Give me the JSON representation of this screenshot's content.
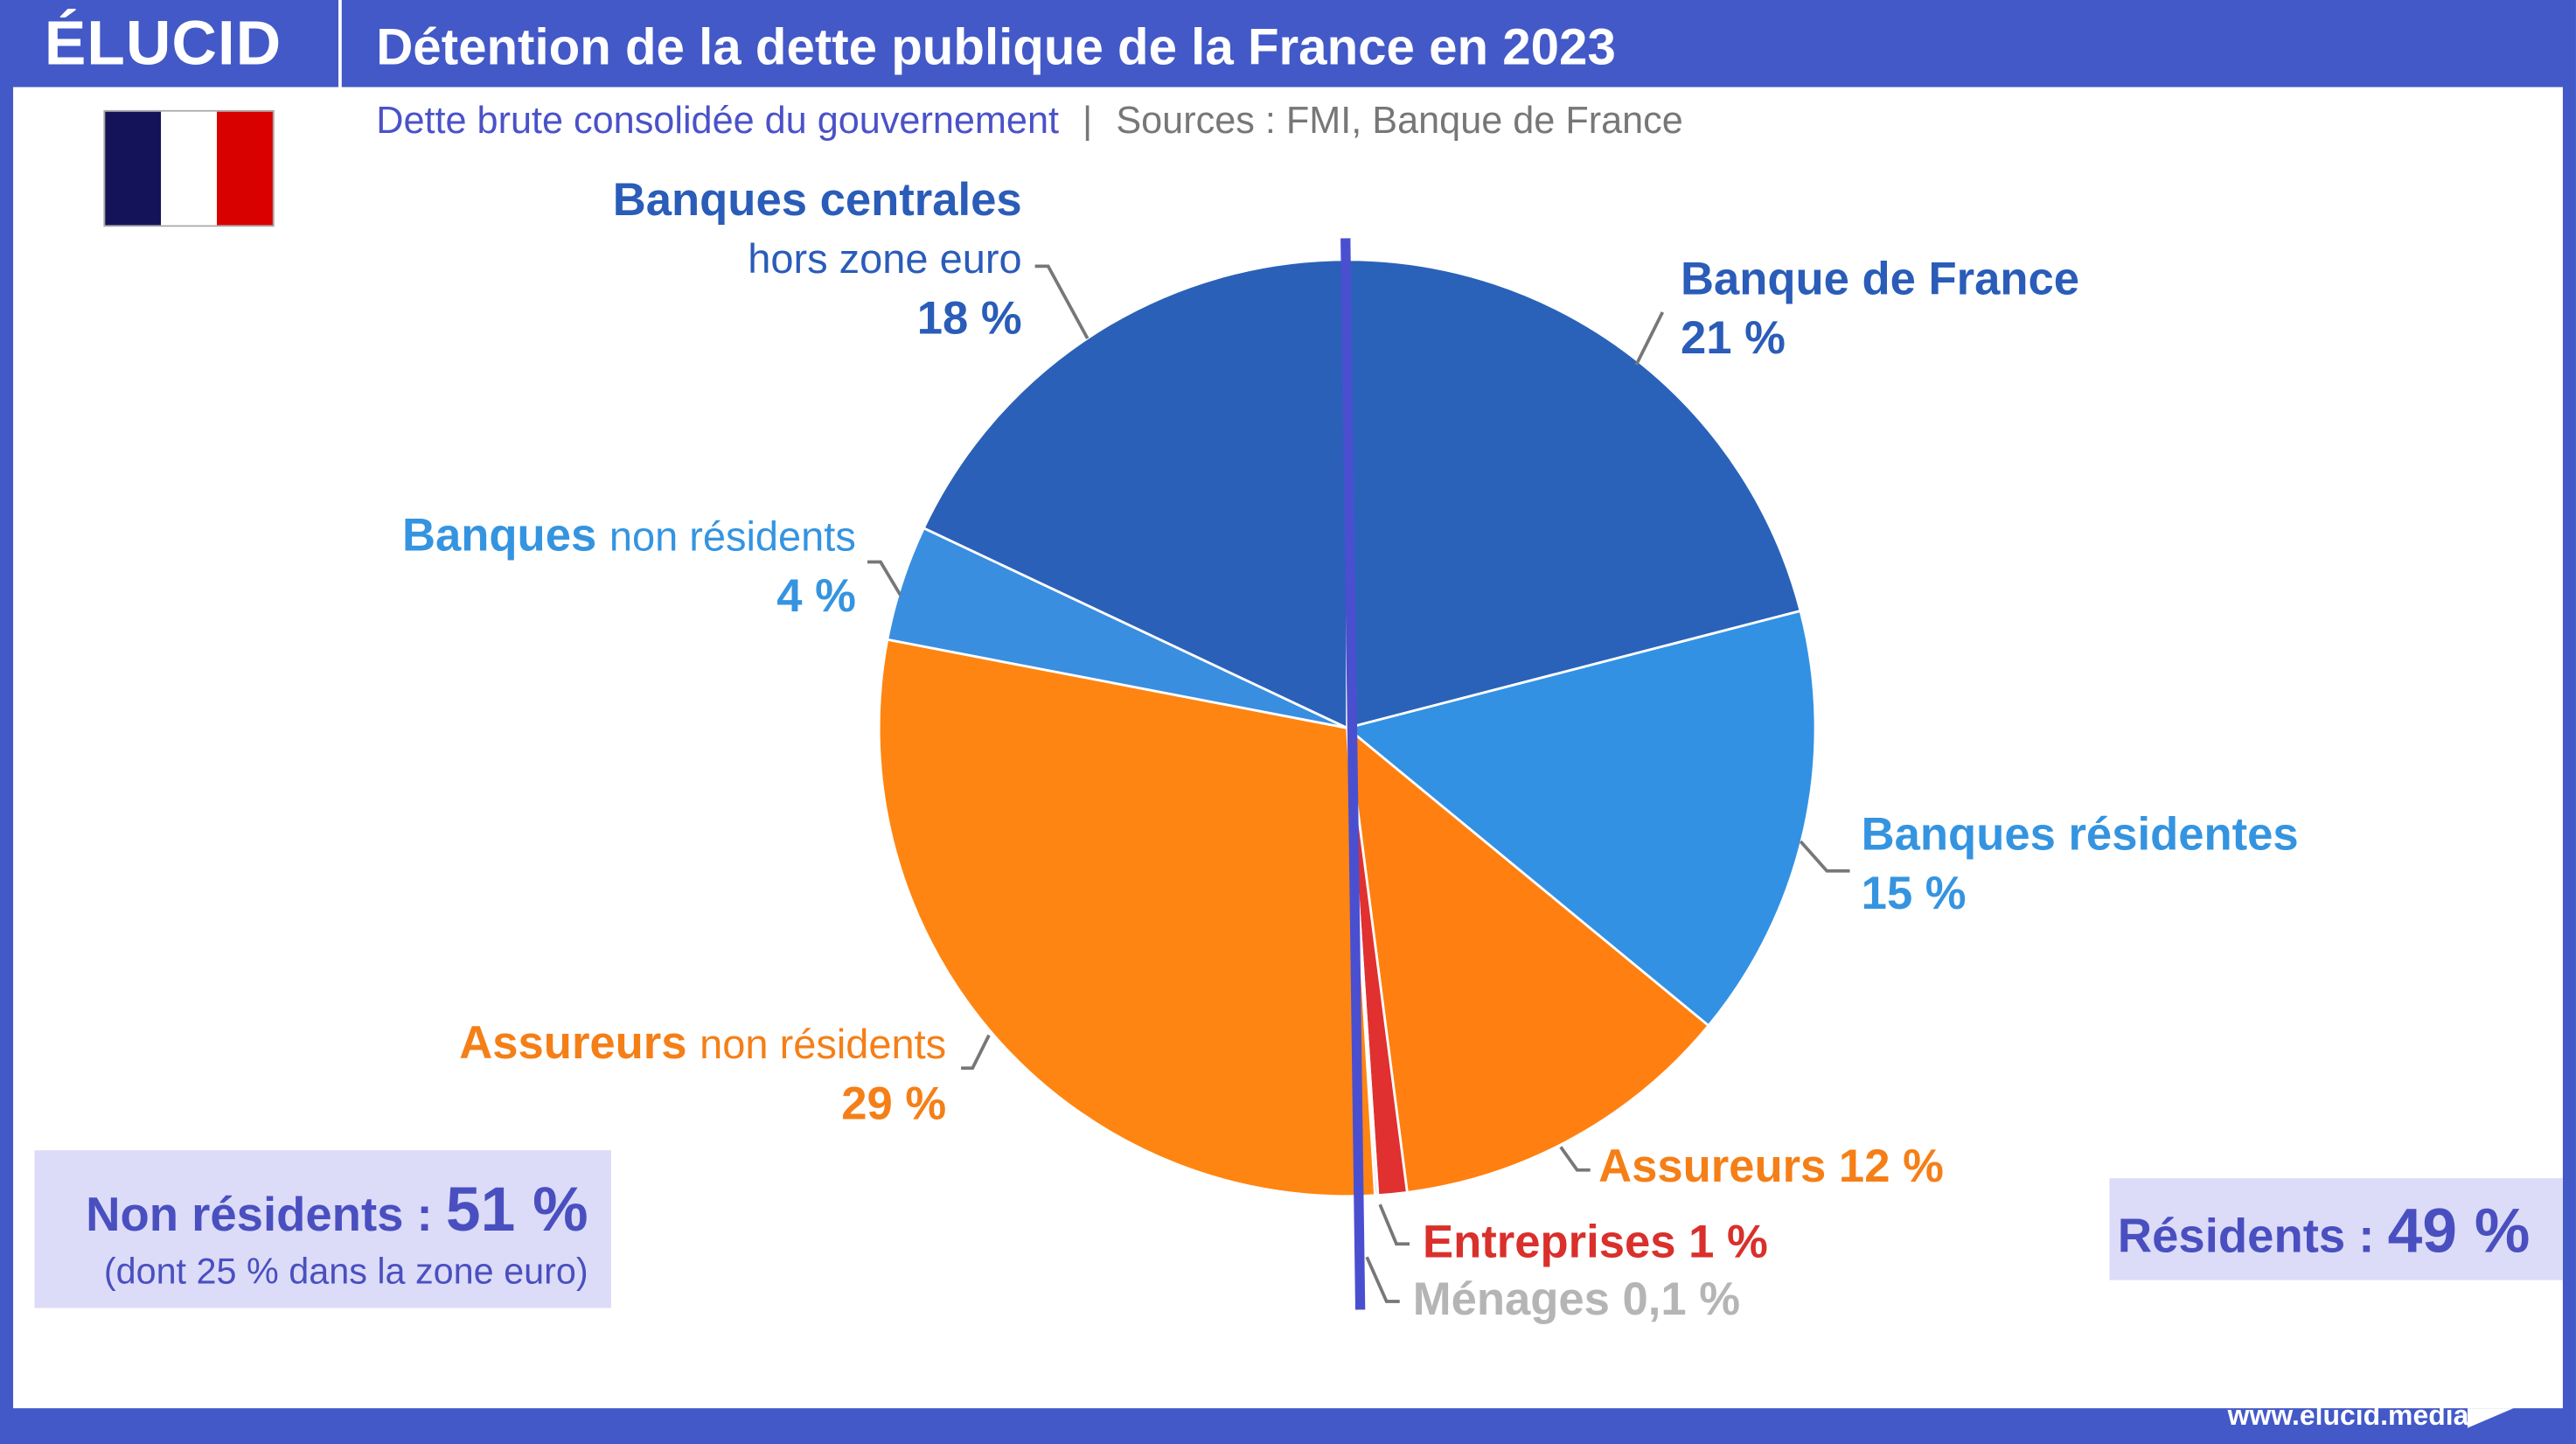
{
  "header": {
    "logo": "ÉLUCID",
    "title": "Détention de la dette publique de la France en 2023",
    "subtitle": "Dette brute consolidée du gouvernement",
    "separator": "|",
    "sources": "Sources : FMI, Banque de France"
  },
  "summary": {
    "non_residents_label": "Non résidents : ",
    "non_residents_value": "51 %",
    "non_residents_note": "(dont 25 % dans la zone euro)",
    "residents_label": "Résidents : ",
    "residents_value": "49 %"
  },
  "footer": {
    "url": "www.elucid.media"
  },
  "colors": {
    "frame": "#4359c8",
    "flag_blue": "#14135a",
    "flag_red": "#d90000"
  },
  "chart_data": {
    "type": "pie",
    "title": "Détention de la dette publique de la France en 2023",
    "start": "top",
    "direction": "clockwise",
    "slices": [
      {
        "name": "Banque de France",
        "value": 21,
        "label": "21 %",
        "color": "#2a62b9"
      },
      {
        "name": "Banques résidentes",
        "value": 15,
        "label": "15 %",
        "color": "#3391e3"
      },
      {
        "name": "Assureurs",
        "value": 12,
        "label": "12 %",
        "color": "#ff8010"
      },
      {
        "name": "Entreprises",
        "value": 1,
        "label": "1 %",
        "color": "#e03030"
      },
      {
        "name": "Ménages",
        "value": 0.1,
        "label": "0,1 %",
        "color": "#bbbbbb"
      },
      {
        "name": "Assureurs",
        "name_suffix": "non résidents",
        "value": 29,
        "label": "29 %",
        "color": "#ff8512"
      },
      {
        "name": "Banques",
        "name_suffix": "non résidents",
        "value": 4,
        "label": "4 %",
        "color": "#3a8ee0"
      },
      {
        "name": "Banques centrales",
        "name_suffix": "hors zone euro",
        "value": 18,
        "label": "18 %",
        "color": "#2a60b8"
      }
    ],
    "divider": "résidents / non résidents"
  }
}
